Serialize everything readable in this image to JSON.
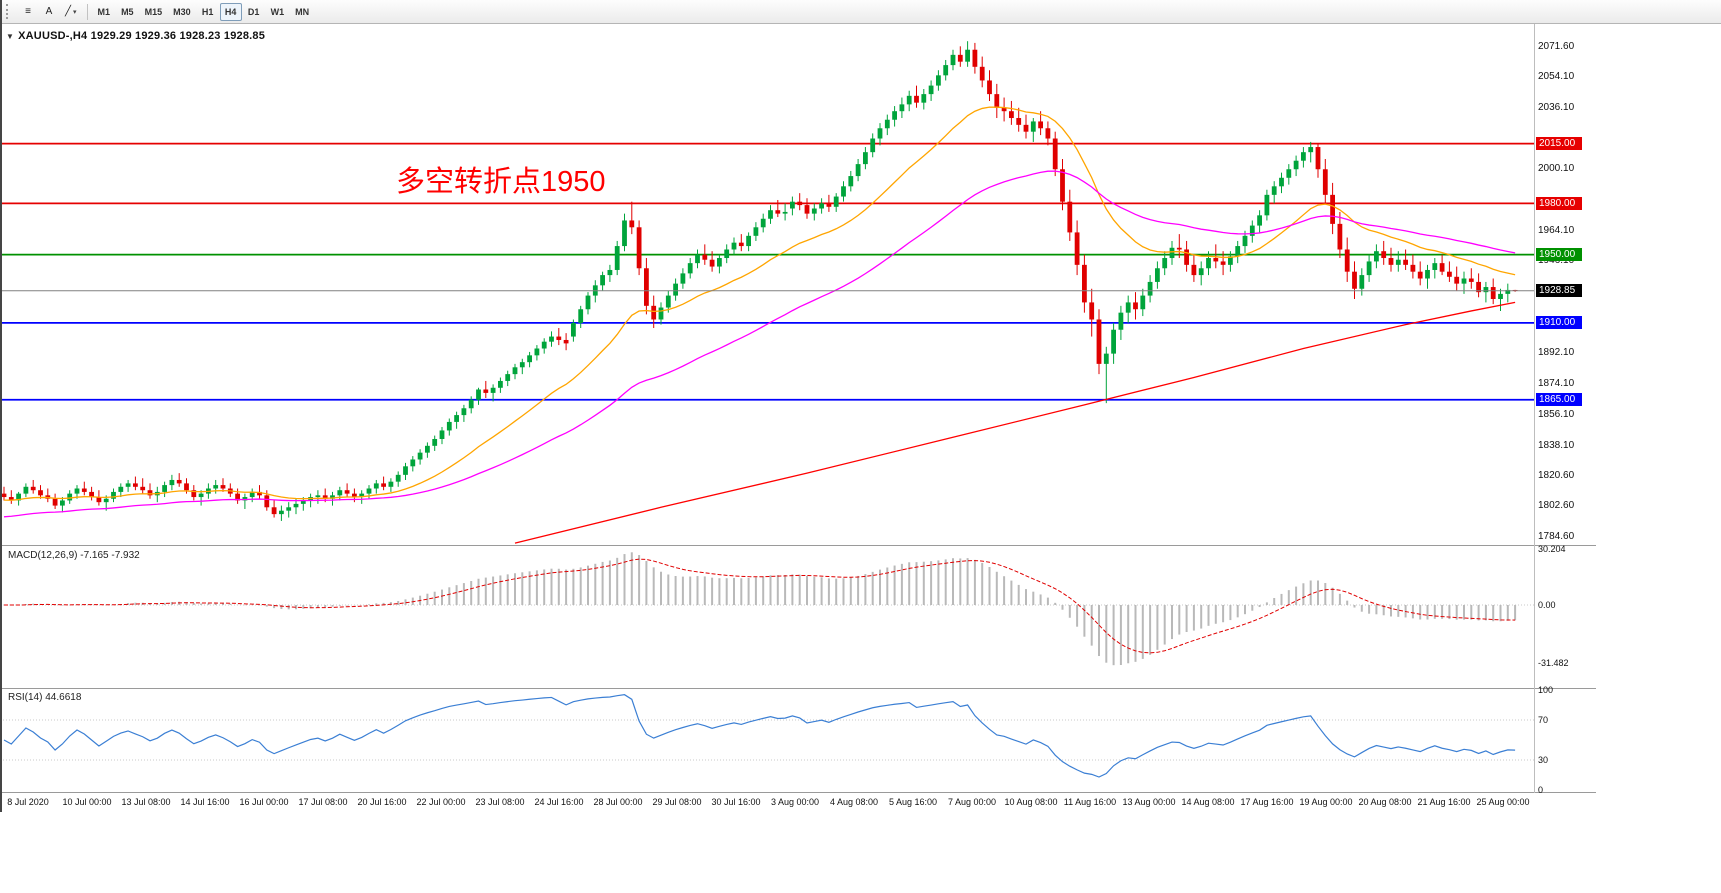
{
  "toolbar": {
    "icons": [
      {
        "name": "charts-list-icon",
        "glyph": "≡"
      },
      {
        "name": "text-tool",
        "glyph": "A"
      },
      {
        "name": "trendline-tool-icon",
        "glyph": "╱"
      },
      {
        "name": "chevron-down-icon",
        "glyph": "▾"
      }
    ],
    "timeframes": [
      "M1",
      "M5",
      "M15",
      "M30",
      "H1",
      "H4",
      "D1",
      "W1",
      "MN"
    ],
    "active_timeframe": "H4"
  },
  "symbol_line": {
    "collapse_icon": "▼",
    "symbol": "XAUUSD-,H4",
    "ohlc": "1929.29 1929.36 1928.23 1928.85"
  },
  "annotation": {
    "text": "多空转折点1950"
  },
  "indicators": {
    "macd": {
      "title": "MACD(12,26,9)",
      "current": "-7.165 -7.932",
      "axis": [
        "30.204",
        "0.00",
        "-31.482"
      ]
    },
    "rsi": {
      "title": "RSI(14)",
      "current": "44.6618",
      "axis": [
        "100",
        "70",
        "30",
        "0"
      ],
      "levels": [
        70,
        30
      ]
    }
  },
  "chart_data": {
    "type": "candlestick",
    "symbol": "XAUUSD",
    "timeframe": "H4",
    "ylim": [
      1784.6,
      2071.6
    ],
    "y_ticks": [
      "2071.60",
      "2054.10",
      "2036.10",
      "2000.10",
      "1964.10",
      "1946.10",
      "1892.10",
      "1874.10",
      "1856.10",
      "1838.10",
      "1820.60",
      "1802.60",
      "1784.60"
    ],
    "x_labels": [
      "8 Jul 2020",
      "10 Jul 00:00",
      "13 Jul 08:00",
      "14 Jul 16:00",
      "16 Jul 00:00",
      "17 Jul 08:00",
      "20 Jul 16:00",
      "22 Jul 00:00",
      "23 Jul 08:00",
      "24 Jul 16:00",
      "28 Jul 00:00",
      "29 Jul 08:00",
      "30 Jul 16:00",
      "3 Aug 00:00",
      "4 Aug 08:00",
      "5 Aug 16:00",
      "7 Aug 00:00",
      "10 Aug 08:00",
      "11 Aug 16:00",
      "13 Aug 00:00",
      "14 Aug 08:00",
      "17 Aug 16:00",
      "19 Aug 00:00",
      "20 Aug 08:00",
      "21 Aug 16:00",
      "25 Aug 00:00"
    ],
    "levels": [
      {
        "price": 2015.0,
        "label": "2015.00",
        "color": "#e60000"
      },
      {
        "price": 1980.0,
        "label": "1980.00",
        "color": "#e60000"
      },
      {
        "price": 1950.0,
        "label": "1950.00",
        "color": "#009100"
      },
      {
        "price": 1910.0,
        "label": "1910.00",
        "color": "#0000ff"
      },
      {
        "price": 1865.0,
        "label": "1865.00",
        "color": "#0000ff"
      }
    ],
    "current_price": {
      "price": 1928.85,
      "label": "1928.85"
    },
    "colors": {
      "bull": "#00a43b",
      "bear": "#e00000"
    },
    "overlays": [
      {
        "name": "ma-fast-orange",
        "type": "ema",
        "period": 21,
        "seed": 1806,
        "color": "#ffa500"
      },
      {
        "name": "ma-mid-magenta",
        "type": "ema",
        "period": 55,
        "seed": 1796,
        "color": "#ff00ff"
      },
      {
        "name": "ma-slow-red",
        "type": "points",
        "color": "#ff0000",
        "points": [
          [
            70,
            1781
          ],
          [
            90,
            1802
          ],
          [
            110,
            1822
          ],
          [
            130,
            1843
          ],
          [
            148,
            1862
          ],
          [
            163,
            1878
          ],
          [
            178,
            1895
          ],
          [
            192,
            1909
          ],
          [
            201,
            1917
          ],
          [
            207,
            1922
          ]
        ]
      }
    ],
    "macd_params": {
      "fast": 12,
      "slow": 26,
      "signal": 9,
      "scale": [
        30.204,
        -31.482
      ]
    },
    "rsi_params": {
      "period": 14,
      "scale": [
        0,
        100
      ]
    },
    "candles": [
      [
        1810,
        1814,
        1806,
        1808
      ],
      [
        1808,
        1812,
        1804,
        1806
      ],
      [
        1806,
        1811,
        1803,
        1810
      ],
      [
        1810,
        1816,
        1808,
        1814
      ],
      [
        1814,
        1818,
        1810,
        1812
      ],
      [
        1812,
        1815,
        1807,
        1809
      ],
      [
        1809,
        1813,
        1805,
        1807
      ],
      [
        1807,
        1810,
        1801,
        1803
      ],
      [
        1803,
        1808,
        1799,
        1806
      ],
      [
        1806,
        1812,
        1804,
        1810
      ],
      [
        1810,
        1815,
        1807,
        1813
      ],
      [
        1813,
        1817,
        1809,
        1811
      ],
      [
        1811,
        1814,
        1806,
        1808
      ],
      [
        1808,
        1812,
        1803,
        1805
      ],
      [
        1805,
        1809,
        1800,
        1807
      ],
      [
        1807,
        1813,
        1805,
        1811
      ],
      [
        1811,
        1816,
        1808,
        1814
      ],
      [
        1814,
        1818,
        1811,
        1816
      ],
      [
        1816,
        1820,
        1812,
        1814
      ],
      [
        1814,
        1819,
        1810,
        1812
      ],
      [
        1812,
        1816,
        1807,
        1809
      ],
      [
        1809,
        1814,
        1805,
        1811
      ],
      [
        1811,
        1817,
        1808,
        1815
      ],
      [
        1815,
        1821,
        1812,
        1818
      ],
      [
        1818,
        1822,
        1814,
        1816
      ],
      [
        1816,
        1819,
        1810,
        1812
      ],
      [
        1812,
        1815,
        1806,
        1808
      ],
      [
        1808,
        1812,
        1803,
        1810
      ],
      [
        1810,
        1816,
        1807,
        1813
      ],
      [
        1813,
        1818,
        1810,
        1815
      ],
      [
        1815,
        1819,
        1811,
        1813
      ],
      [
        1813,
        1816,
        1808,
        1810
      ],
      [
        1810,
        1813,
        1804,
        1806
      ],
      [
        1806,
        1810,
        1801,
        1808
      ],
      [
        1808,
        1813,
        1805,
        1811
      ],
      [
        1811,
        1815,
        1807,
        1809
      ],
      [
        1809,
        1812,
        1800,
        1802
      ],
      [
        1802,
        1806,
        1796,
        1798
      ],
      [
        1798,
        1803,
        1794,
        1800
      ],
      [
        1800,
        1805,
        1796,
        1802
      ],
      [
        1802,
        1807,
        1798,
        1804
      ],
      [
        1804,
        1808,
        1800,
        1806
      ],
      [
        1806,
        1810,
        1802,
        1808
      ],
      [
        1808,
        1812,
        1804,
        1809
      ],
      [
        1809,
        1813,
        1805,
        1807
      ],
      [
        1807,
        1811,
        1803,
        1809
      ],
      [
        1809,
        1814,
        1806,
        1812
      ],
      [
        1812,
        1816,
        1808,
        1810
      ],
      [
        1810,
        1813,
        1805,
        1808
      ],
      [
        1808,
        1812,
        1804,
        1810
      ],
      [
        1810,
        1815,
        1807,
        1813
      ],
      [
        1813,
        1818,
        1810,
        1816
      ],
      [
        1816,
        1820,
        1812,
        1814
      ],
      [
        1814,
        1819,
        1811,
        1817
      ],
      [
        1817,
        1823,
        1814,
        1821
      ],
      [
        1821,
        1828,
        1818,
        1826
      ],
      [
        1826,
        1832,
        1823,
        1830
      ],
      [
        1830,
        1836,
        1827,
        1834
      ],
      [
        1834,
        1840,
        1831,
        1838
      ],
      [
        1838,
        1844,
        1835,
        1842
      ],
      [
        1842,
        1849,
        1839,
        1847
      ],
      [
        1847,
        1854,
        1844,
        1852
      ],
      [
        1852,
        1858,
        1848,
        1856
      ],
      [
        1856,
        1862,
        1852,
        1860
      ],
      [
        1860,
        1867,
        1857,
        1865
      ],
      [
        1865,
        1872,
        1862,
        1871
      ],
      [
        1871,
        1876,
        1866,
        1869
      ],
      [
        1869,
        1874,
        1864,
        1872
      ],
      [
        1872,
        1878,
        1869,
        1876
      ],
      [
        1876,
        1882,
        1873,
        1880
      ],
      [
        1880,
        1886,
        1877,
        1884
      ],
      [
        1884,
        1889,
        1880,
        1887
      ],
      [
        1887,
        1893,
        1884,
        1891
      ],
      [
        1891,
        1897,
        1888,
        1895
      ],
      [
        1895,
        1901,
        1892,
        1899
      ],
      [
        1899,
        1905,
        1896,
        1902
      ],
      [
        1902,
        1907,
        1897,
        1900
      ],
      [
        1900,
        1904,
        1894,
        1898
      ],
      [
        1902,
        1912,
        1899,
        1910
      ],
      [
        1910,
        1920,
        1907,
        1918
      ],
      [
        1918,
        1928,
        1915,
        1926
      ],
      [
        1926,
        1935,
        1922,
        1932
      ],
      [
        1932,
        1940,
        1929,
        1938
      ],
      [
        1938,
        1944,
        1934,
        1941
      ],
      [
        1941,
        1958,
        1938,
        1955
      ],
      [
        1955,
        1974,
        1952,
        1970
      ],
      [
        1970,
        1981,
        1962,
        1966
      ],
      [
        1966,
        1970,
        1938,
        1942
      ],
      [
        1942,
        1948,
        1915,
        1920
      ],
      [
        1920,
        1926,
        1907,
        1912
      ],
      [
        1912,
        1922,
        1909,
        1919
      ],
      [
        1919,
        1929,
        1916,
        1926
      ],
      [
        1926,
        1936,
        1923,
        1933
      ],
      [
        1933,
        1942,
        1930,
        1939
      ],
      [
        1939,
        1948,
        1936,
        1945
      ],
      [
        1945,
        1953,
        1942,
        1950
      ],
      [
        1950,
        1956,
        1944,
        1947
      ],
      [
        1947,
        1952,
        1940,
        1943
      ],
      [
        1943,
        1950,
        1939,
        1948
      ],
      [
        1948,
        1956,
        1945,
        1953
      ],
      [
        1953,
        1960,
        1950,
        1957
      ],
      [
        1957,
        1962,
        1952,
        1955
      ],
      [
        1955,
        1963,
        1952,
        1961
      ],
      [
        1961,
        1969,
        1958,
        1966
      ],
      [
        1966,
        1974,
        1963,
        1971
      ],
      [
        1971,
        1979,
        1968,
        1976
      ],
      [
        1976,
        1982,
        1972,
        1974
      ],
      [
        1974,
        1980,
        1970,
        1975
      ],
      [
        1977,
        1984,
        1973,
        1981
      ],
      [
        1981,
        1986,
        1976,
        1979
      ],
      [
        1979,
        1983,
        1971,
        1974
      ],
      [
        1974,
        1980,
        1970,
        1977
      ],
      [
        1977,
        1983,
        1974,
        1980
      ],
      [
        1980,
        1985,
        1975,
        1978
      ],
      [
        1978,
        1986,
        1975,
        1984
      ],
      [
        1984,
        1993,
        1981,
        1990
      ],
      [
        1990,
        1999,
        1987,
        1996
      ],
      [
        1996,
        2006,
        1993,
        2003
      ],
      [
        2003,
        2013,
        2000,
        2010
      ],
      [
        2010,
        2021,
        2007,
        2018
      ],
      [
        2018,
        2027,
        2014,
        2024
      ],
      [
        2024,
        2032,
        2020,
        2029
      ],
      [
        2029,
        2037,
        2025,
        2034
      ],
      [
        2034,
        2042,
        2030,
        2038
      ],
      [
        2038,
        2046,
        2034,
        2043
      ],
      [
        2043,
        2049,
        2036,
        2039
      ],
      [
        2039,
        2047,
        2035,
        2044
      ],
      [
        2044,
        2052,
        2040,
        2049
      ],
      [
        2049,
        2058,
        2046,
        2055
      ],
      [
        2055,
        2064,
        2052,
        2061
      ],
      [
        2061,
        2070,
        2058,
        2067
      ],
      [
        2067,
        2072,
        2060,
        2063
      ],
      [
        2063,
        2075,
        2060,
        2070
      ],
      [
        2070,
        2074,
        2056,
        2060
      ],
      [
        2060,
        2066,
        2048,
        2052
      ],
      [
        2052,
        2058,
        2040,
        2044
      ],
      [
        2044,
        2050,
        2030,
        2036
      ],
      [
        2036,
        2042,
        2028,
        2034
      ],
      [
        2034,
        2040,
        2026,
        2030
      ],
      [
        2030,
        2036,
        2022,
        2026
      ],
      [
        2026,
        2032,
        2018,
        2022
      ],
      [
        2022,
        2030,
        2016,
        2028
      ],
      [
        2028,
        2034,
        2020,
        2024
      ],
      [
        2024,
        2028,
        2014,
        2018
      ],
      [
        2018,
        2022,
        1996,
        2000
      ],
      [
        2000,
        2006,
        1976,
        1981
      ],
      [
        1981,
        1988,
        1958,
        1963
      ],
      [
        1963,
        1970,
        1938,
        1944
      ],
      [
        1944,
        1950,
        1916,
        1922
      ],
      [
        1922,
        1930,
        1902,
        1912
      ],
      [
        1912,
        1918,
        1880,
        1886
      ],
      [
        1886,
        1896,
        1863,
        1892
      ],
      [
        1892,
        1910,
        1886,
        1906
      ],
      [
        1906,
        1920,
        1900,
        1916
      ],
      [
        1916,
        1926,
        1910,
        1922
      ],
      [
        1922,
        1928,
        1912,
        1918
      ],
      [
        1918,
        1930,
        1914,
        1926
      ],
      [
        1926,
        1938,
        1922,
        1934
      ],
      [
        1934,
        1946,
        1930,
        1942
      ],
      [
        1942,
        1952,
        1938,
        1948
      ],
      [
        1948,
        1958,
        1944,
        1954
      ],
      [
        1954,
        1962,
        1948,
        1953
      ],
      [
        1953,
        1958,
        1940,
        1944
      ],
      [
        1944,
        1950,
        1934,
        1938
      ],
      [
        1938,
        1946,
        1932,
        1942
      ],
      [
        1942,
        1952,
        1938,
        1948
      ],
      [
        1948,
        1956,
        1942,
        1946
      ],
      [
        1946,
        1952,
        1938,
        1944
      ],
      [
        1944,
        1952,
        1940,
        1949
      ],
      [
        1949,
        1958,
        1945,
        1955
      ],
      [
        1955,
        1964,
        1951,
        1961
      ],
      [
        1961,
        1970,
        1957,
        1967
      ],
      [
        1967,
        1976,
        1963,
        1973
      ],
      [
        1973,
        1988,
        1970,
        1985
      ],
      [
        1985,
        1993,
        1980,
        1990
      ],
      [
        1990,
        1998,
        1986,
        1995
      ],
      [
        1995,
        2003,
        1991,
        2000
      ],
      [
        2000,
        2008,
        1996,
        2005
      ],
      [
        2005,
        2013,
        2001,
        2010
      ],
      [
        2010,
        2016,
        2004,
        2013
      ],
      [
        2013,
        2015,
        1995,
        2000
      ],
      [
        2000,
        2006,
        1980,
        1985
      ],
      [
        1985,
        1992,
        1962,
        1968
      ],
      [
        1968,
        1975,
        1948,
        1953
      ],
      [
        1953,
        1960,
        1934,
        1940
      ],
      [
        1940,
        1946,
        1924,
        1930
      ],
      [
        1930,
        1942,
        1926,
        1938
      ],
      [
        1938,
        1950,
        1934,
        1946
      ],
      [
        1946,
        1956,
        1942,
        1952
      ],
      [
        1952,
        1958,
        1944,
        1948
      ],
      [
        1948,
        1954,
        1940,
        1944
      ],
      [
        1944,
        1952,
        1940,
        1947
      ],
      [
        1947,
        1953,
        1941,
        1944
      ],
      [
        1944,
        1950,
        1936,
        1940
      ],
      [
        1940,
        1946,
        1932,
        1936
      ],
      [
        1936,
        1944,
        1930,
        1941
      ],
      [
        1941,
        1948,
        1936,
        1945
      ],
      [
        1945,
        1950,
        1938,
        1940
      ],
      [
        1940,
        1946,
        1934,
        1937
      ],
      [
        1937,
        1943,
        1929,
        1933
      ],
      [
        1933,
        1940,
        1927,
        1936
      ],
      [
        1936,
        1942,
        1930,
        1934
      ],
      [
        1934,
        1939,
        1925,
        1928
      ],
      [
        1928,
        1934,
        1922,
        1931
      ],
      [
        1931,
        1936,
        1921,
        1924
      ],
      [
        1924,
        1930,
        1917,
        1927
      ],
      [
        1927,
        1933,
        1922,
        1929.3
      ],
      [
        1929.29,
        1929.36,
        1928.23,
        1928.85
      ]
    ]
  }
}
